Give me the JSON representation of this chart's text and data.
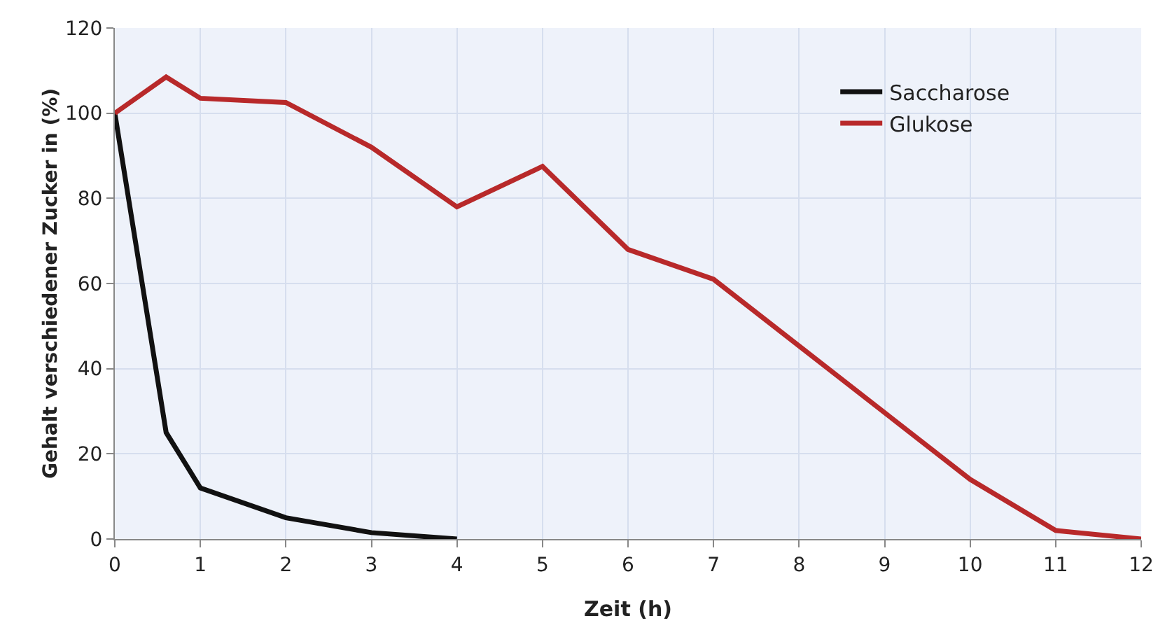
{
  "chart_data": {
    "type": "line",
    "xlabel": "Zeit (h)",
    "ylabel": "Gehalt verschiedener Zucker in (%)",
    "xlim": [
      0,
      12
    ],
    "xticks": [
      0,
      1,
      2,
      3,
      4,
      5,
      6,
      7,
      8,
      9,
      10,
      11,
      12
    ],
    "ylim": [
      0,
      120
    ],
    "yticks": [
      0,
      20,
      40,
      60,
      80,
      100,
      120
    ],
    "series": [
      {
        "name": "Saccharose",
        "color": "#111111",
        "x": [
          0,
          0.6,
          1,
          2,
          3,
          4
        ],
        "values": [
          100,
          25,
          12,
          5,
          1.5,
          0
        ]
      },
      {
        "name": "Glukose",
        "color": "#b8292a",
        "x": [
          0,
          0.6,
          1,
          2,
          3,
          4,
          5,
          6,
          7,
          10,
          11,
          12
        ],
        "values": [
          100,
          108.5,
          103.5,
          102.5,
          92,
          78,
          87.5,
          68,
          61,
          14,
          2,
          0
        ]
      }
    ],
    "grid": true,
    "legend": "top right",
    "marker": "none",
    "line_style": "solid"
  }
}
